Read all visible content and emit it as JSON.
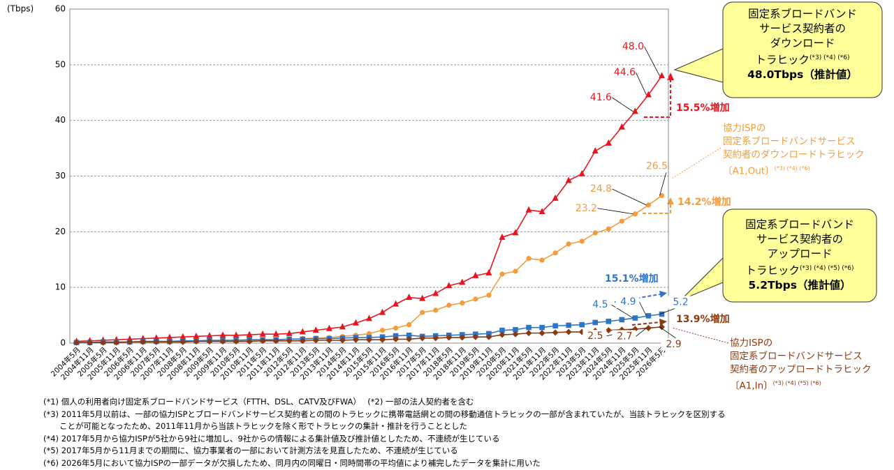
{
  "chart_data": {
    "type": "line",
    "y_unit": "(Tbps)",
    "categories": [
      "2004年5月",
      "2004年11月",
      "2005年5月",
      "2005年11月",
      "2006年5月",
      "2006年11月",
      "2007年5月",
      "2007年11月",
      "2008年5月",
      "2008年11月",
      "2009年5月",
      "2009年11月",
      "2010年5月",
      "2010年11月",
      "2011年5月",
      "2011年11月",
      "2012年5月",
      "2012年11月",
      "2013年5月",
      "2013年11月",
      "2014年5月",
      "2014年11月",
      "2015年5月",
      "2015年11月",
      "2016年5月",
      "2016年11月",
      "2017年5月",
      "2017年11月",
      "2018年5月",
      "2018年11月",
      "2019年5月",
      "2019年11月",
      "2020年5月",
      "2020年11月",
      "2021年5月",
      "2021年11月",
      "2022年5月",
      "2022年11月",
      "2023年5月",
      "2023年11月",
      "2024年5月",
      "2024年11月",
      "2025年5月",
      "2025年11月",
      "2026年5月"
    ],
    "ylim": [
      0,
      60
    ],
    "yticks": [
      0,
      10,
      20,
      30,
      40,
      50,
      60
    ],
    "grid": true,
    "series": [
      {
        "color": "#e8141e",
        "marker": "triangle",
        "values": [
          0.3,
          0.4,
          0.5,
          0.6,
          0.7,
          0.8,
          0.9,
          1.0,
          1.1,
          1.2,
          1.3,
          1.4,
          1.4,
          1.5,
          1.6,
          1.6,
          1.7,
          2.0,
          2.3,
          2.6,
          2.9,
          3.6,
          4.4,
          5.5,
          7.0,
          8.2,
          8.0,
          8.9,
          10.3,
          10.9,
          12.1,
          12.6,
          19.0,
          19.8,
          23.9,
          23.6,
          26.0,
          29.2,
          30.4,
          34.5,
          35.9,
          38.8,
          41.6,
          44.6,
          48.0
        ],
        "value_labels": [
          null,
          null,
          null,
          null,
          null,
          null,
          null,
          null,
          null,
          null,
          null,
          null,
          null,
          null,
          null,
          null,
          null,
          null,
          null,
          null,
          null,
          null,
          null,
          null,
          null,
          null,
          null,
          null,
          null,
          null,
          null,
          null,
          null,
          null,
          null,
          null,
          null,
          null,
          null,
          null,
          null,
          null,
          "41.6",
          "44.6",
          "48.0"
        ]
      },
      {
        "color": "#f39c3c",
        "marker": "circle",
        "values": [
          0.1,
          0.1,
          0.2,
          0.2,
          0.2,
          0.3,
          0.3,
          0.3,
          0.4,
          0.4,
          0.4,
          0.5,
          0.5,
          0.5,
          0.6,
          0.6,
          0.7,
          0.8,
          0.9,
          1.0,
          1.2,
          1.4,
          1.7,
          2.3,
          2.7,
          3.3,
          5.5,
          5.9,
          6.8,
          7.2,
          7.9,
          8.6,
          12.4,
          12.9,
          15.2,
          14.9,
          16.2,
          17.8,
          18.3,
          19.8,
          20.5,
          21.9,
          23.2,
          24.8,
          26.5
        ],
        "value_labels": [
          null,
          null,
          null,
          null,
          null,
          null,
          null,
          null,
          null,
          null,
          null,
          null,
          null,
          null,
          null,
          null,
          null,
          null,
          null,
          null,
          null,
          null,
          null,
          null,
          null,
          null,
          null,
          null,
          null,
          null,
          null,
          null,
          null,
          null,
          null,
          null,
          null,
          null,
          null,
          null,
          null,
          null,
          "23.2",
          "24.8",
          "26.5"
        ]
      },
      {
        "color": "#2e75c8",
        "marker": "square",
        "values": [
          0.1,
          0.1,
          0.2,
          0.2,
          0.2,
          0.3,
          0.3,
          0.3,
          0.4,
          0.4,
          0.5,
          0.5,
          0.5,
          0.6,
          0.6,
          0.6,
          0.7,
          0.7,
          0.8,
          0.8,
          0.9,
          1.0,
          1.0,
          1.1,
          1.3,
          1.4,
          1.2,
          1.3,
          1.4,
          1.5,
          1.6,
          1.7,
          2.3,
          2.4,
          2.8,
          2.8,
          3.1,
          3.2,
          3.3,
          3.7,
          3.9,
          4.2,
          4.5,
          4.9,
          5.2
        ],
        "value_labels": [
          null,
          null,
          null,
          null,
          null,
          null,
          null,
          null,
          null,
          null,
          null,
          null,
          null,
          null,
          null,
          null,
          null,
          null,
          null,
          null,
          null,
          null,
          null,
          null,
          null,
          null,
          null,
          null,
          null,
          null,
          null,
          null,
          null,
          null,
          null,
          null,
          null,
          null,
          null,
          null,
          null,
          null,
          "4.5",
          "4.9",
          "5.2"
        ]
      },
      {
        "color": "#8b3a0f",
        "marker": "diamond",
        "values": [
          0.1,
          0.1,
          0.1,
          0.1,
          0.2,
          0.2,
          0.2,
          0.2,
          0.2,
          0.3,
          0.3,
          0.3,
          0.3,
          0.3,
          0.4,
          0.4,
          0.4,
          0.4,
          0.5,
          0.5,
          0.5,
          0.6,
          0.6,
          0.6,
          0.7,
          0.7,
          0.9,
          0.9,
          1.0,
          1.0,
          1.1,
          1.1,
          1.5,
          1.6,
          1.8,
          1.8,
          1.9,
          2.0,
          2.0,
          2.2,
          2.3,
          2.4,
          2.5,
          2.7,
          2.9
        ],
        "value_labels": [
          null,
          null,
          null,
          null,
          null,
          null,
          null,
          null,
          null,
          null,
          null,
          null,
          null,
          null,
          null,
          null,
          null,
          null,
          null,
          null,
          null,
          null,
          null,
          null,
          null,
          null,
          null,
          null,
          null,
          null,
          null,
          null,
          null,
          null,
          null,
          null,
          null,
          null,
          null,
          null,
          null,
          null,
          "2.5",
          "2.7",
          "2.9"
        ]
      }
    ],
    "growth_labels": [
      "15.5%増加",
      "14.2%増加",
      "15.1%増加",
      "13.9%増加"
    ],
    "callouts": [
      {
        "lines": [
          "固定系ブロードバンド",
          "サービス契約者の",
          "ダウンロード",
          "トラヒック"
        ],
        "note": "(*3) (*4) (*6)",
        "total": "48.0Tbps（推計値）"
      },
      {
        "lines": [
          "固定系ブロードバンド",
          "サービス契約者の",
          "アップロード",
          "トラヒック"
        ],
        "note": "(*3) (*4) (*5) (*6)",
        "total": "5.2Tbps（推計値）"
      }
    ],
    "isp_labels": [
      {
        "lines": [
          "協力ISPの",
          "固定系ブロードバンドサービス",
          "契約者のダウンロードトラヒック",
          "〔A1,Out〕"
        ],
        "note": "(*3) (*4) (*6)"
      },
      {
        "lines": [
          "協力ISPの",
          "固定系ブロードバンドサービス",
          "契約者のアップロードトラヒック",
          "〔A1,In〕"
        ],
        "note": "(*3) (*4) (*5) (*6)"
      }
    ],
    "footnotes": [
      "(*1) 個人の利用者向け固定系ブロードバンドサービス（FTTH、DSL、CATV及びFWA）　 (*2) 一部の法人契約者を含む",
      "(*3) 2011年5月以前は、一部の協力ISPとブロードバンドサービス契約者との間のトラヒックに携帯電話網との間の移動通信トラヒックの一部が含まれていたが、当該トラヒックを区別する",
      "　　ことが可能となったため、2011年11月から当該トラヒックを除く形でトラヒックの集計・推計を行うこととした",
      "(*4) 2017年5月から協力ISPが5社から9社に増加し、9社からの情報による集計値及び推計値としたため、不連続が生じている",
      "(*5) 2017年5月から11月までの期間に、協力事業者の一部において計測方法を見直したため、不連続が生じている",
      "(*6) 2026年5月において協力ISPの一部データが欠損したため、同月内の同曜日・同時間帯の平均値により補完したデータを集計に用いた"
    ]
  }
}
